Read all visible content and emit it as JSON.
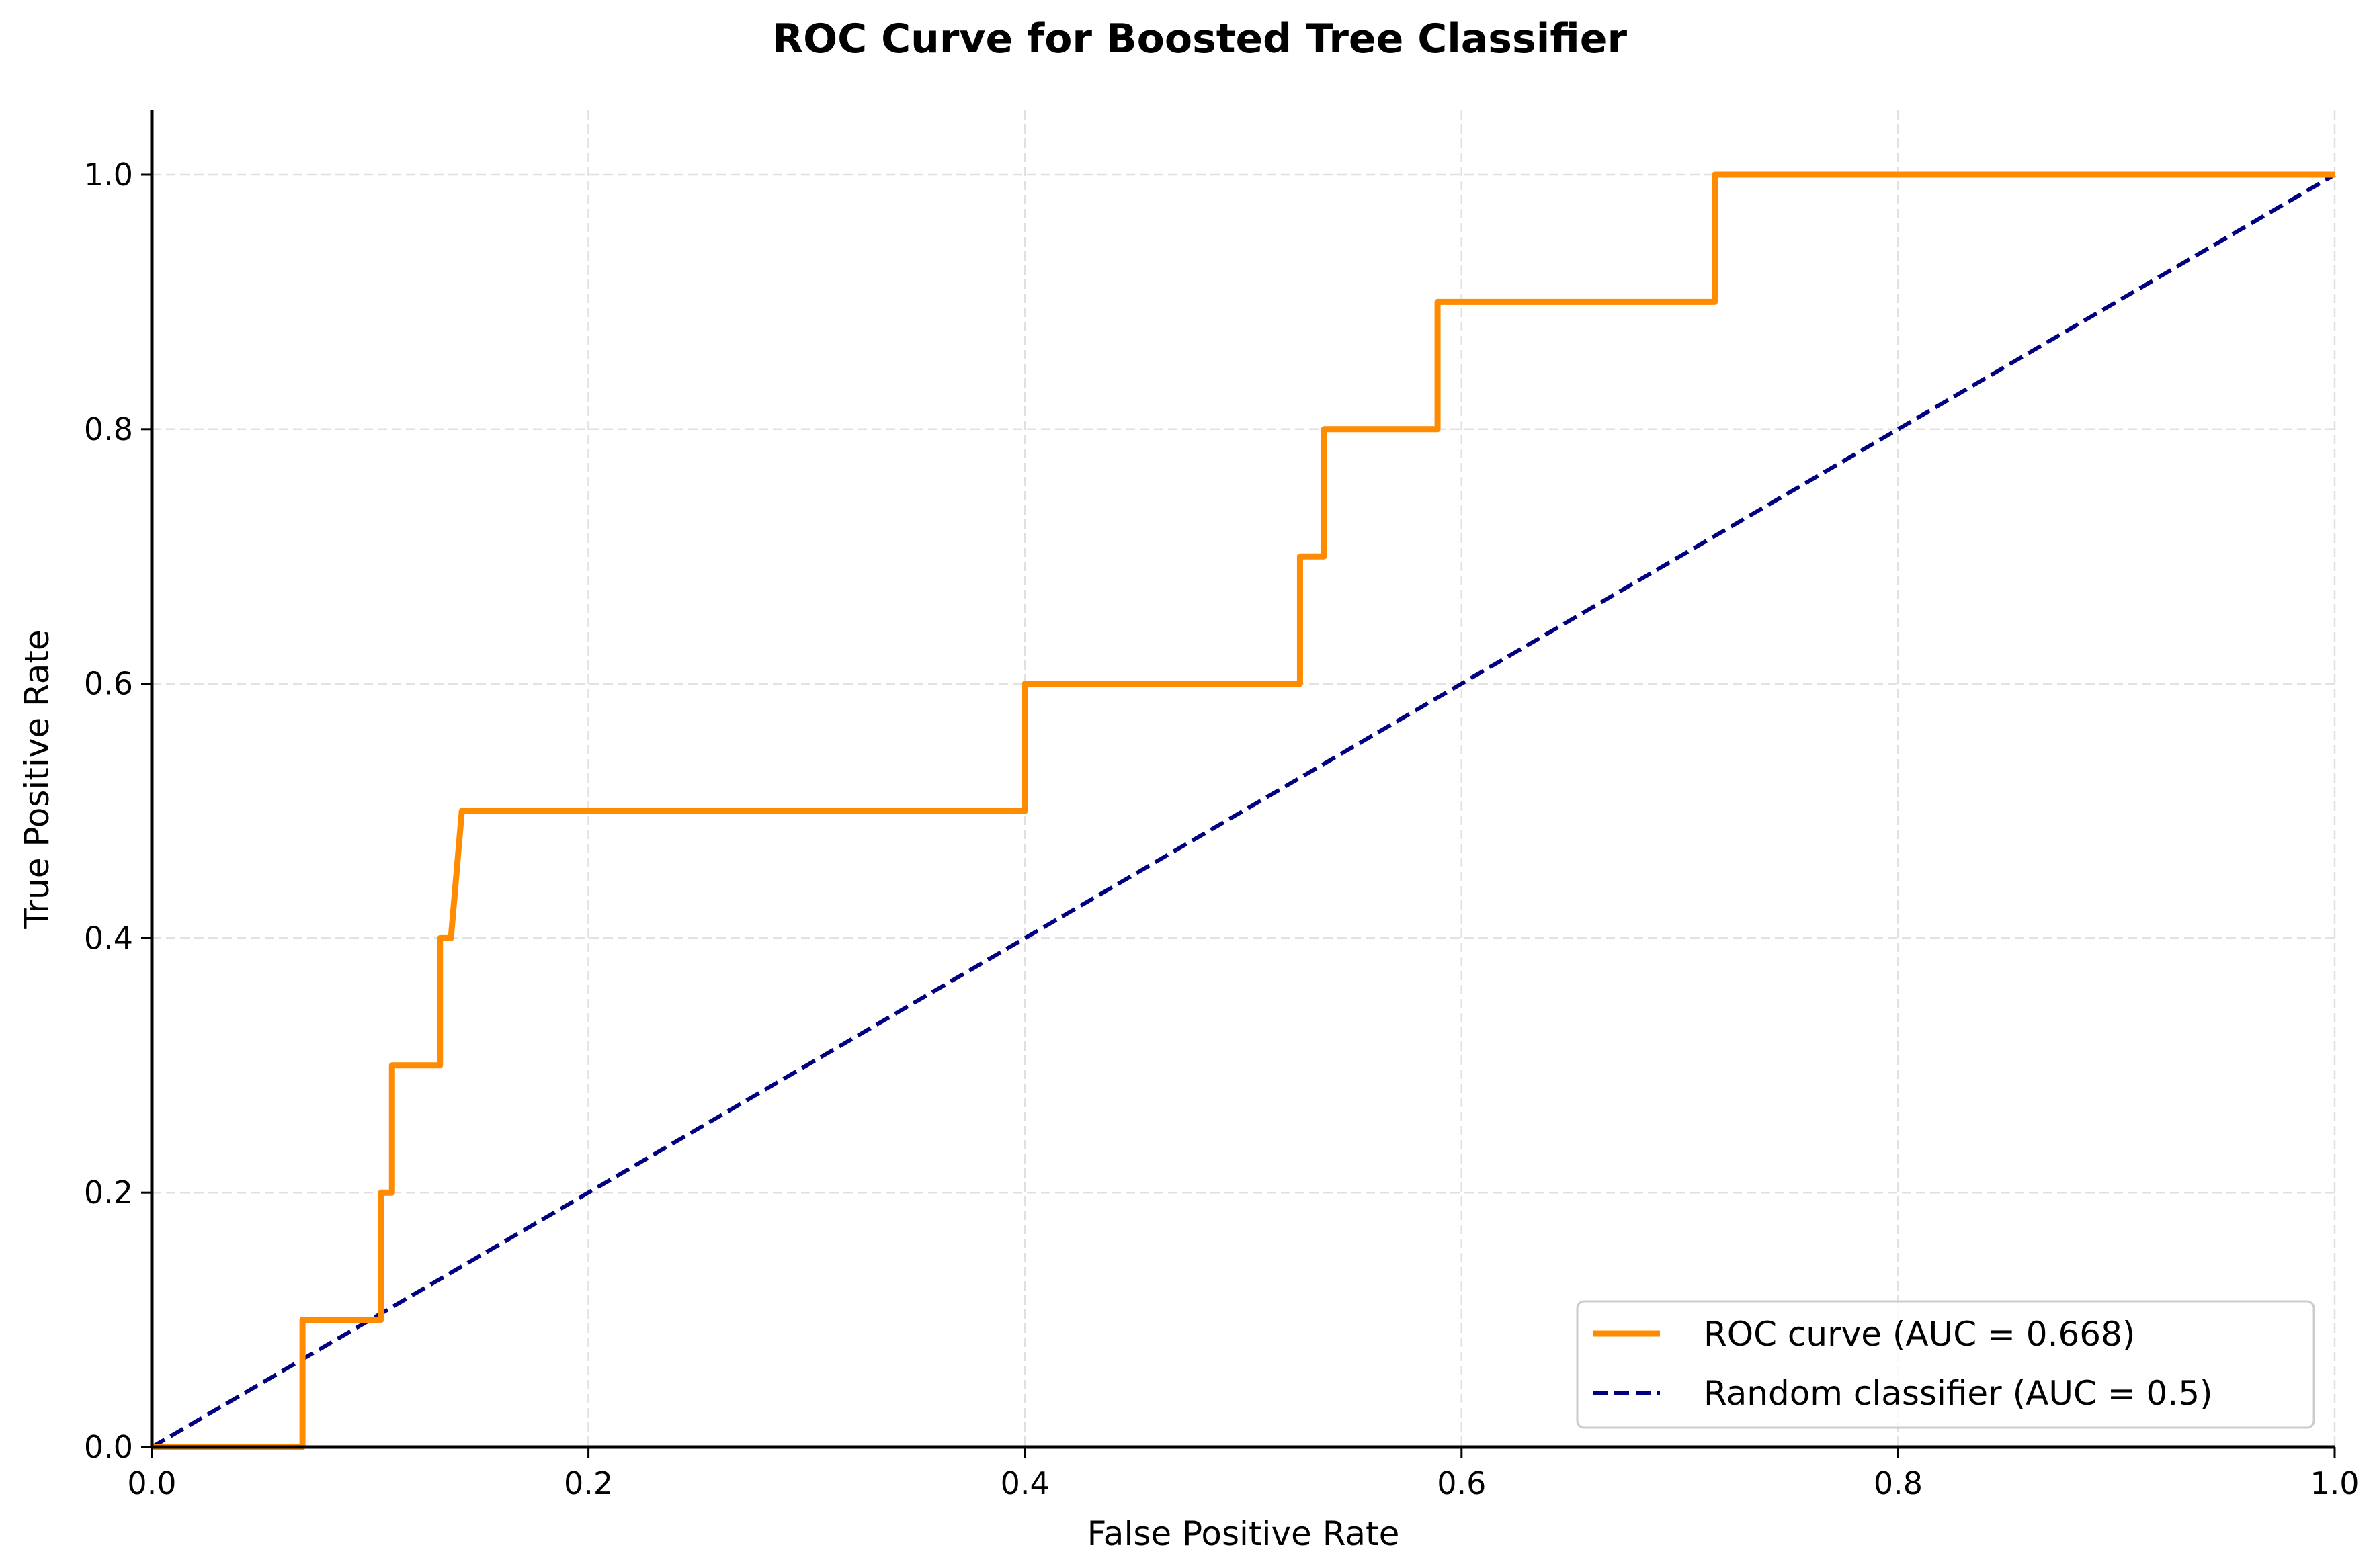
{
  "chart_data": {
    "type": "line",
    "title": "ROC Curve for Boosted Tree Classifier",
    "xlabel": "False Positive Rate",
    "ylabel": "True Positive Rate",
    "xlim": [
      0.0,
      1.0
    ],
    "ylim": [
      0.0,
      1.05
    ],
    "xticks": [
      "0.0",
      "0.2",
      "0.4",
      "0.6",
      "0.8",
      "1.0"
    ],
    "yticks": [
      "0.0",
      "0.2",
      "0.4",
      "0.6",
      "0.8",
      "1.0"
    ],
    "grid": true,
    "legend_position": "bottom-right",
    "series": [
      {
        "name": "ROC curve (AUC = 0.668)",
        "color": "#ff8c00",
        "style": "solid",
        "x": [
          0.0,
          0.069,
          0.069,
          0.105,
          0.105,
          0.11,
          0.11,
          0.132,
          0.132,
          0.137,
          0.142,
          0.4,
          0.4,
          0.526,
          0.526,
          0.537,
          0.537,
          0.589,
          0.589,
          0.716,
          0.716,
          1.0
        ],
        "y": [
          0.0,
          0.0,
          0.1,
          0.1,
          0.2,
          0.2,
          0.3,
          0.3,
          0.4,
          0.4,
          0.5,
          0.5,
          0.6,
          0.6,
          0.7,
          0.7,
          0.8,
          0.8,
          0.9,
          0.9,
          1.0,
          1.0
        ]
      },
      {
        "name": "Random classifier (AUC = 0.5)",
        "color": "#000080",
        "style": "dashed",
        "x": [
          0.0,
          1.0
        ],
        "y": [
          0.0,
          1.0
        ]
      }
    ]
  }
}
